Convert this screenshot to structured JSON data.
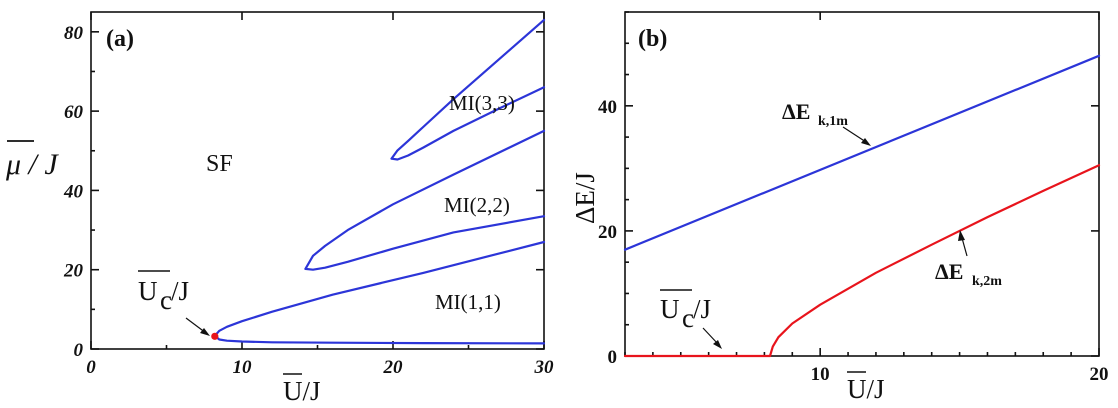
{
  "colors": {
    "blue": "#2c35d8",
    "red": "#e8141c",
    "axis": "#111111"
  },
  "chart_data": [
    {
      "panel": "(a)",
      "type": "line",
      "xlabel": "U/J",
      "ylabel": "μ / J",
      "xlim": [
        0,
        30
      ],
      "ylim": [
        0,
        85
      ],
      "xticks": [
        0,
        10,
        20,
        30
      ],
      "yticks": [
        0,
        20,
        40,
        60,
        80
      ],
      "annotations": [
        "SF",
        "MI(1,1)",
        "MI(2,2)",
        "MI(3,3)",
        "U",
        "c",
        "/J"
      ],
      "critical_point": {
        "x": 8.2,
        "y": 3.2
      },
      "series": [
        {
          "name": "MI(1,1) lobe",
          "color": "#2c35d8",
          "x": [
            30,
            22,
            16,
            12,
            10,
            9,
            8.5,
            8.2,
            8.5,
            9,
            10,
            12,
            16,
            22,
            30
          ],
          "y": [
            27,
            19.2,
            13.7,
            9.4,
            7.0,
            5.6,
            4.6,
            3.3,
            2.4,
            2.1,
            1.9,
            1.7,
            1.6,
            1.5,
            1.4
          ]
        },
        {
          "name": "MI(2,2) lobe",
          "color": "#2c35d8",
          "x": [
            30,
            24,
            20,
            17,
            15.5,
            14.7,
            14.2,
            14.7,
            15.5,
            17,
            20,
            24,
            30
          ],
          "y": [
            55,
            44,
            36.5,
            30,
            26,
            23.5,
            20.2,
            20,
            20.5,
            22,
            25.3,
            29.4,
            33.5
          ]
        },
        {
          "name": "MI(3,3) lobe",
          "color": "#2c35d8",
          "x": [
            30,
            27,
            24,
            22,
            21,
            20.3,
            19.9,
            20.3,
            21,
            22,
            24,
            27,
            30
          ],
          "y": [
            83,
            73,
            63,
            56,
            52.5,
            50.1,
            48,
            47.8,
            48.8,
            50.8,
            55,
            60.6,
            66
          ]
        }
      ]
    },
    {
      "panel": "(b)",
      "type": "line",
      "xlabel": "U/J",
      "ylabel": "ΔE/J",
      "xlim": [
        3,
        20
      ],
      "ylim": [
        0,
        55
      ],
      "xticks": [
        10,
        20
      ],
      "yticks": [
        0,
        20,
        40
      ],
      "annotations": [
        "U",
        "c",
        "/J"
      ],
      "series": [
        {
          "name": "ΔE",
          "subscript": "k,1m",
          "color": "#2c35d8",
          "x": [
            3,
            20
          ],
          "y": [
            17,
            48
          ]
        },
        {
          "name": "ΔE",
          "subscript": "k,2m",
          "color": "#e8141c",
          "x": [
            3,
            8.2,
            8.3,
            8.5,
            9,
            10,
            12,
            14,
            16,
            18,
            20
          ],
          "y": [
            0,
            0,
            1.5,
            3.0,
            5.2,
            8.2,
            13.3,
            17.8,
            22.2,
            26.4,
            30.5
          ]
        }
      ]
    }
  ]
}
